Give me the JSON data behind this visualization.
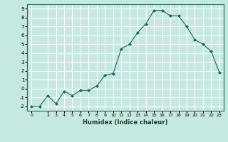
{
  "x": [
    0,
    1,
    2,
    3,
    4,
    5,
    6,
    7,
    8,
    9,
    10,
    11,
    12,
    13,
    14,
    15,
    16,
    17,
    18,
    19,
    20,
    21,
    22,
    23
  ],
  "y": [
    -2.0,
    -2.0,
    -0.8,
    -1.7,
    -0.3,
    -0.8,
    -0.2,
    -0.2,
    0.3,
    1.5,
    1.7,
    4.5,
    5.0,
    6.3,
    7.3,
    8.8,
    8.8,
    8.2,
    8.2,
    7.0,
    5.5,
    5.0,
    4.2,
    1.8
  ],
  "xlabel": "Humidex (Indice chaleur)",
  "bg_color": "#c5e8e0",
  "grid_color": "#ffffff",
  "line_color": "#1a6b5a",
  "ylim": [
    -2.5,
    9.5
  ],
  "xlim": [
    -0.5,
    23.5
  ],
  "yticks": [
    -2,
    -1,
    0,
    1,
    2,
    3,
    4,
    5,
    6,
    7,
    8,
    9
  ],
  "xticks": [
    0,
    2,
    3,
    4,
    5,
    6,
    7,
    8,
    9,
    10,
    11,
    12,
    13,
    14,
    15,
    16,
    17,
    18,
    19,
    20,
    21,
    22,
    23
  ]
}
